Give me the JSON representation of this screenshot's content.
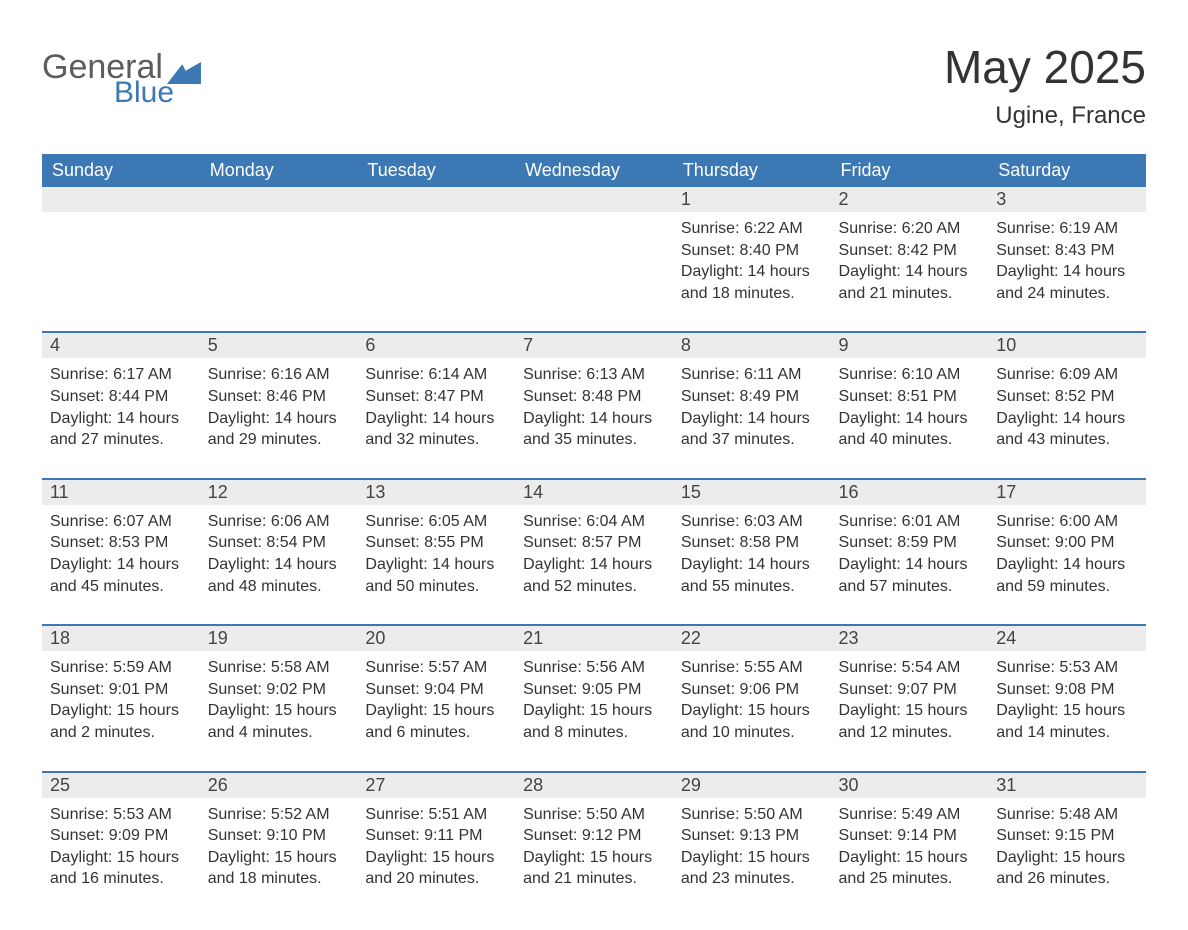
{
  "brand": {
    "word1": "General",
    "word2": "Blue"
  },
  "header": {
    "title": "May 2025",
    "location": "Ugine, France"
  },
  "colors": {
    "header_bg": "#3c78b4",
    "header_fg": "#ffffff",
    "row_separator": "#3c78b4",
    "daynum_bg": "#ececec",
    "text": "#333333",
    "logo_gray": "#5c5c5c",
    "logo_blue": "#3c78b4",
    "page_bg": "#ffffff"
  },
  "typography": {
    "title_fontsize": 46,
    "location_fontsize": 24,
    "header_fontsize": 18,
    "daynum_fontsize": 18,
    "body_fontsize": 16,
    "font_family": "Arial"
  },
  "calendar": {
    "type": "table",
    "columns": [
      "Sunday",
      "Monday",
      "Tuesday",
      "Wednesday",
      "Thursday",
      "Friday",
      "Saturday"
    ],
    "weeks": [
      [
        null,
        null,
        null,
        null,
        {
          "day": "1",
          "sunrise": "6:22 AM",
          "sunset": "8:40 PM",
          "daylight": "14 hours and 18 minutes."
        },
        {
          "day": "2",
          "sunrise": "6:20 AM",
          "sunset": "8:42 PM",
          "daylight": "14 hours and 21 minutes."
        },
        {
          "day": "3",
          "sunrise": "6:19 AM",
          "sunset": "8:43 PM",
          "daylight": "14 hours and 24 minutes."
        }
      ],
      [
        {
          "day": "4",
          "sunrise": "6:17 AM",
          "sunset": "8:44 PM",
          "daylight": "14 hours and 27 minutes."
        },
        {
          "day": "5",
          "sunrise": "6:16 AM",
          "sunset": "8:46 PM",
          "daylight": "14 hours and 29 minutes."
        },
        {
          "day": "6",
          "sunrise": "6:14 AM",
          "sunset": "8:47 PM",
          "daylight": "14 hours and 32 minutes."
        },
        {
          "day": "7",
          "sunrise": "6:13 AM",
          "sunset": "8:48 PM",
          "daylight": "14 hours and 35 minutes."
        },
        {
          "day": "8",
          "sunrise": "6:11 AM",
          "sunset": "8:49 PM",
          "daylight": "14 hours and 37 minutes."
        },
        {
          "day": "9",
          "sunrise": "6:10 AM",
          "sunset": "8:51 PM",
          "daylight": "14 hours and 40 minutes."
        },
        {
          "day": "10",
          "sunrise": "6:09 AM",
          "sunset": "8:52 PM",
          "daylight": "14 hours and 43 minutes."
        }
      ],
      [
        {
          "day": "11",
          "sunrise": "6:07 AM",
          "sunset": "8:53 PM",
          "daylight": "14 hours and 45 minutes."
        },
        {
          "day": "12",
          "sunrise": "6:06 AM",
          "sunset": "8:54 PM",
          "daylight": "14 hours and 48 minutes."
        },
        {
          "day": "13",
          "sunrise": "6:05 AM",
          "sunset": "8:55 PM",
          "daylight": "14 hours and 50 minutes."
        },
        {
          "day": "14",
          "sunrise": "6:04 AM",
          "sunset": "8:57 PM",
          "daylight": "14 hours and 52 minutes."
        },
        {
          "day": "15",
          "sunrise": "6:03 AM",
          "sunset": "8:58 PM",
          "daylight": "14 hours and 55 minutes."
        },
        {
          "day": "16",
          "sunrise": "6:01 AM",
          "sunset": "8:59 PM",
          "daylight": "14 hours and 57 minutes."
        },
        {
          "day": "17",
          "sunrise": "6:00 AM",
          "sunset": "9:00 PM",
          "daylight": "14 hours and 59 minutes."
        }
      ],
      [
        {
          "day": "18",
          "sunrise": "5:59 AM",
          "sunset": "9:01 PM",
          "daylight": "15 hours and 2 minutes."
        },
        {
          "day": "19",
          "sunrise": "5:58 AM",
          "sunset": "9:02 PM",
          "daylight": "15 hours and 4 minutes."
        },
        {
          "day": "20",
          "sunrise": "5:57 AM",
          "sunset": "9:04 PM",
          "daylight": "15 hours and 6 minutes."
        },
        {
          "day": "21",
          "sunrise": "5:56 AM",
          "sunset": "9:05 PM",
          "daylight": "15 hours and 8 minutes."
        },
        {
          "day": "22",
          "sunrise": "5:55 AM",
          "sunset": "9:06 PM",
          "daylight": "15 hours and 10 minutes."
        },
        {
          "day": "23",
          "sunrise": "5:54 AM",
          "sunset": "9:07 PM",
          "daylight": "15 hours and 12 minutes."
        },
        {
          "day": "24",
          "sunrise": "5:53 AM",
          "sunset": "9:08 PM",
          "daylight": "15 hours and 14 minutes."
        }
      ],
      [
        {
          "day": "25",
          "sunrise": "5:53 AM",
          "sunset": "9:09 PM",
          "daylight": "15 hours and 16 minutes."
        },
        {
          "day": "26",
          "sunrise": "5:52 AM",
          "sunset": "9:10 PM",
          "daylight": "15 hours and 18 minutes."
        },
        {
          "day": "27",
          "sunrise": "5:51 AM",
          "sunset": "9:11 PM",
          "daylight": "15 hours and 20 minutes."
        },
        {
          "day": "28",
          "sunrise": "5:50 AM",
          "sunset": "9:12 PM",
          "daylight": "15 hours and 21 minutes."
        },
        {
          "day": "29",
          "sunrise": "5:50 AM",
          "sunset": "9:13 PM",
          "daylight": "15 hours and 23 minutes."
        },
        {
          "day": "30",
          "sunrise": "5:49 AM",
          "sunset": "9:14 PM",
          "daylight": "15 hours and 25 minutes."
        },
        {
          "day": "31",
          "sunrise": "5:48 AM",
          "sunset": "9:15 PM",
          "daylight": "15 hours and 26 minutes."
        }
      ]
    ],
    "labels": {
      "sunrise": "Sunrise:",
      "sunset": "Sunset:",
      "daylight": "Daylight:"
    }
  }
}
